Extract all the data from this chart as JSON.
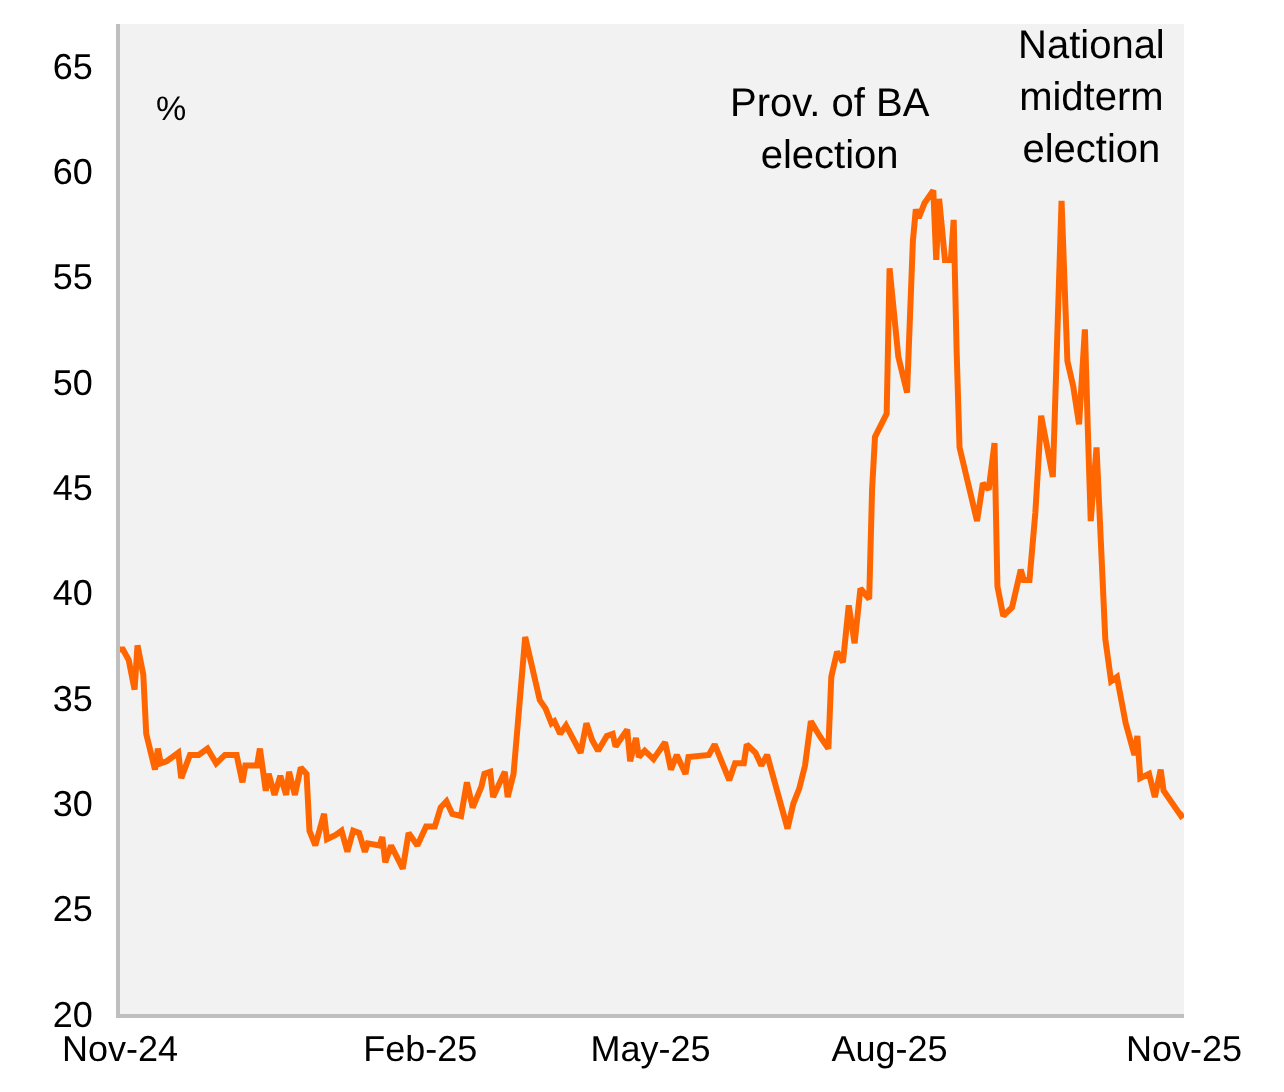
{
  "chart_data": {
    "type": "line",
    "ylabel": "%",
    "x": [
      "2024-11-10",
      "2024-11-11",
      "2024-11-13",
      "2024-11-15",
      "2024-11-16",
      "2024-11-18",
      "2024-11-19",
      "2024-11-22",
      "2024-11-23",
      "2024-11-24",
      "2024-11-26",
      "2024-11-30",
      "2024-12-01",
      "2024-12-04",
      "2024-12-07",
      "2024-12-10",
      "2024-12-13",
      "2024-12-16",
      "2024-12-20",
      "2024-12-22",
      "2024-12-23",
      "2024-12-27",
      "2024-12-28",
      "2024-12-30",
      "2024-12-31",
      "2025-01-02",
      "2025-01-04",
      "2025-01-06",
      "2025-01-07",
      "2025-01-09",
      "2025-01-11",
      "2025-01-13",
      "2025-01-14",
      "2025-01-16",
      "2025-01-19",
      "2025-01-20",
      "2025-01-23",
      "2025-01-25",
      "2025-01-27",
      "2025-01-29",
      "2025-01-31",
      "2025-02-02",
      "2025-02-03",
      "2025-02-07",
      "2025-02-08",
      "2025-02-09",
      "2025-02-11",
      "2025-02-15",
      "2025-02-17",
      "2025-02-20",
      "2025-02-23",
      "2025-02-26",
      "2025-02-28",
      "2025-03-02",
      "2025-03-04",
      "2025-03-07",
      "2025-03-09",
      "2025-03-11",
      "2025-03-14",
      "2025-03-15",
      "2025-03-17",
      "2025-03-18",
      "2025-03-22",
      "2025-03-23",
      "2025-03-25",
      "2025-03-29",
      "2025-04-03",
      "2025-04-05",
      "2025-04-07",
      "2025-04-08",
      "2025-04-10",
      "2025-04-12",
      "2025-04-17",
      "2025-04-19",
      "2025-04-21",
      "2025-04-23",
      "2025-04-26",
      "2025-04-28",
      "2025-04-29",
      "2025-05-03",
      "2025-05-04",
      "2025-05-06",
      "2025-05-07",
      "2025-05-09",
      "2025-05-12",
      "2025-05-16",
      "2025-05-18",
      "2025-05-20",
      "2025-05-23",
      "2025-05-24",
      "2025-05-31",
      "2025-06-02",
      "2025-06-07",
      "2025-06-09",
      "2025-06-12",
      "2025-06-13",
      "2025-06-16",
      "2025-06-18",
      "2025-06-20",
      "2025-06-27",
      "2025-06-29",
      "2025-07-01",
      "2025-07-03",
      "2025-07-05",
      "2025-07-08",
      "2025-07-11",
      "2025-07-12",
      "2025-07-14",
      "2025-07-16",
      "2025-07-18",
      "2025-07-20",
      "2025-07-22",
      "2025-07-25",
      "2025-07-26",
      "2025-07-27",
      "2025-07-31",
      "2025-08-01",
      "2025-08-04",
      "2025-08-07",
      "2025-08-09",
      "2025-08-10",
      "2025-08-11",
      "2025-08-13",
      "2025-08-16",
      "2025-08-17",
      "2025-08-18",
      "2025-08-20",
      "2025-08-22",
      "2025-08-23",
      "2025-08-24",
      "2025-08-25",
      "2025-08-31",
      "2025-09-02",
      "2025-09-04",
      "2025-09-06",
      "2025-09-07",
      "2025-09-09",
      "2025-09-12",
      "2025-09-15",
      "2025-09-16",
      "2025-09-18",
      "2025-09-20",
      "2025-09-22",
      "2025-09-26",
      "2025-09-29",
      "2025-10-01",
      "2025-10-03",
      "2025-10-05",
      "2025-10-07",
      "2025-10-08",
      "2025-10-09",
      "2025-10-11",
      "2025-10-14",
      "2025-10-16",
      "2025-10-18",
      "2025-10-21",
      "2025-10-24",
      "2025-10-25",
      "2025-10-26",
      "2025-10-29",
      "2025-10-31",
      "2025-11-02",
      "2025-11-03",
      "2025-11-09",
      "2025-11-10"
    ],
    "series": [
      {
        "color": "#ff6600",
        "values": [
          37.3,
          37.3,
          36.8,
          35.4,
          37.5,
          36.1,
          33.3,
          31.6,
          32.6,
          31.9,
          32.0,
          32.4,
          31.2,
          32.3,
          32.3,
          32.6,
          31.9,
          32.3,
          32.3,
          31.0,
          31.8,
          31.8,
          32.6,
          30.6,
          31.4,
          30.4,
          31.3,
          30.4,
          31.5,
          30.4,
          31.7,
          31.4,
          28.7,
          28.0,
          29.5,
          28.3,
          28.5,
          28.7,
          27.7,
          28.7,
          28.6,
          27.7,
          28.1,
          28.0,
          28.4,
          27.2,
          28.0,
          26.9,
          28.6,
          28.0,
          28.9,
          28.9,
          29.8,
          30.1,
          29.5,
          29.4,
          31.0,
          29.8,
          30.8,
          31.4,
          31.5,
          30.3,
          31.5,
          30.3,
          31.4,
          37.9,
          34.9,
          34.5,
          33.8,
          33.9,
          33.3,
          33.7,
          32.4,
          33.8,
          33.0,
          32.5,
          33.2,
          33.3,
          32.7,
          33.5,
          32.0,
          33.1,
          32.2,
          32.5,
          32.1,
          32.9,
          31.6,
          32.3,
          31.4,
          32.2,
          32.3,
          32.8,
          31.1,
          31.9,
          31.9,
          32.8,
          32.4,
          31.8,
          32.3,
          28.8,
          30.0,
          30.7,
          31.8,
          33.9,
          33.2,
          32.6,
          36.0,
          37.2,
          36.7,
          39.4,
          37.6,
          40.2,
          39.7,
          44.9,
          47.4,
          48.5,
          55.4,
          51.2,
          49.5,
          56.7,
          58.2,
          57.8,
          58.5,
          59.1,
          55.8,
          58.7,
          55.8,
          55.8,
          57.7,
          51.5,
          46.9,
          43.4,
          45.2,
          44.9,
          47.1,
          40.3,
          38.9,
          39.3,
          41.1,
          40.6,
          40.6,
          43.8,
          48.4,
          45.5,
          58.6,
          51.0,
          49.8,
          48.0,
          52.5,
          47.8,
          43.4,
          46.9,
          37.8,
          35.8,
          36.0,
          33.8,
          32.3,
          33.2,
          31.2,
          31.4,
          30.3,
          31.6,
          30.6,
          29.4,
          29.5
        ]
      }
    ],
    "xlim": [
      "2024-11-10",
      "2025-11-10"
    ],
    "xticks": [
      {
        "value": "2024-11-10",
        "label": "Nov-24"
      },
      {
        "value": "2025-02-21",
        "label": "Feb-25"
      },
      {
        "value": "2025-05-11",
        "label": "May-25"
      },
      {
        "value": "2025-08-01",
        "label": "Aug-25"
      },
      {
        "value": "2025-11-10",
        "label": "Nov-25"
      }
    ],
    "ylim": [
      20,
      67
    ],
    "yticks": [
      20,
      25,
      30,
      35,
      40,
      45,
      50,
      55,
      60,
      65
    ],
    "grid": false,
    "marker": "none",
    "line_style": "solid",
    "annotations": [
      "Prov. of BA\nelection",
      "National\nmidterm\nelection"
    ]
  }
}
